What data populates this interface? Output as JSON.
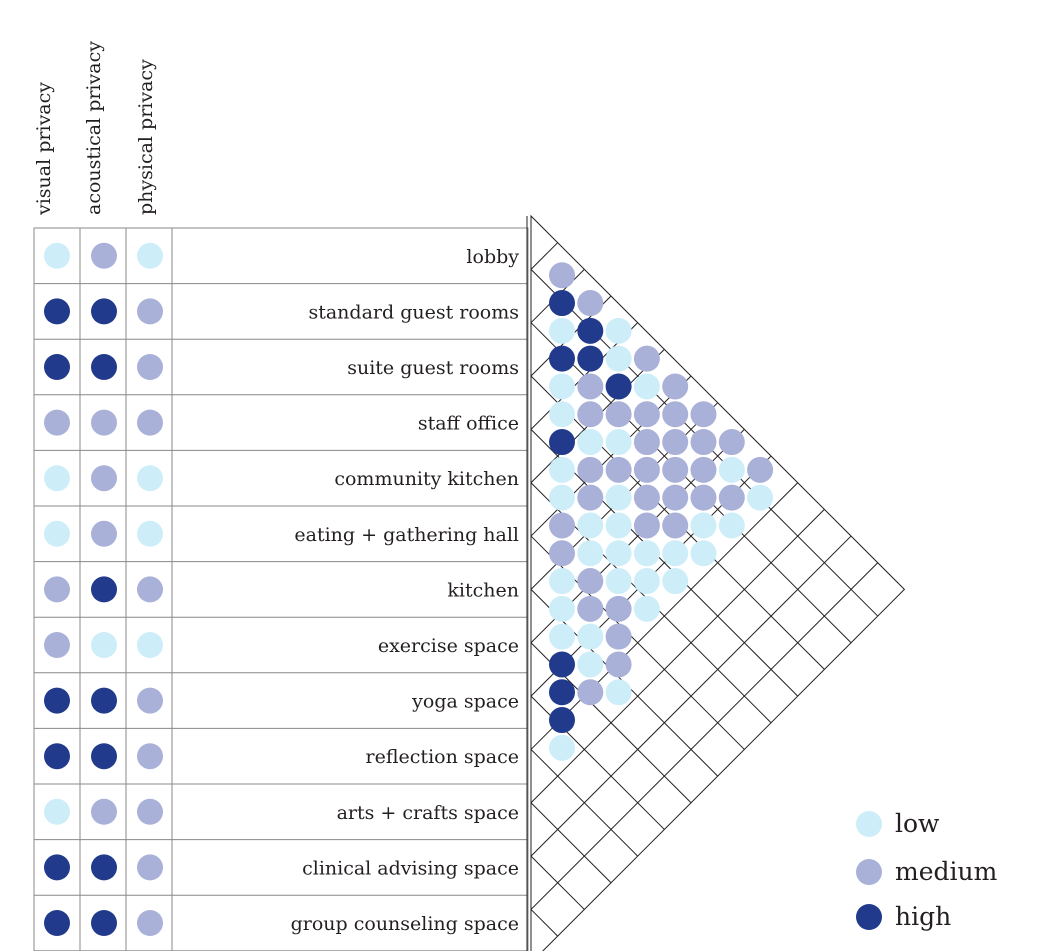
{
  "colors": {
    "low": "#cdeef9",
    "medium": "#a9b1d8",
    "high": "#213a8b",
    "grid": "#888888",
    "line": "#231f20"
  },
  "columns": [
    {
      "key": "visual",
      "label": "visual privacy"
    },
    {
      "key": "acoustical",
      "label": "acoustical privacy"
    },
    {
      "key": "physical",
      "label": "physical privacy"
    }
  ],
  "rows": [
    {
      "label": "lobby",
      "levels": [
        "low",
        "medium",
        "low"
      ]
    },
    {
      "label": "standard guest rooms",
      "levels": [
        "high",
        "high",
        "medium"
      ]
    },
    {
      "label": "suite guest rooms",
      "levels": [
        "high",
        "high",
        "medium"
      ]
    },
    {
      "label": "staff office",
      "levels": [
        "medium",
        "medium",
        "medium"
      ]
    },
    {
      "label": "community kitchen",
      "levels": [
        "low",
        "medium",
        "low"
      ]
    },
    {
      "label": "eating + gathering hall",
      "levels": [
        "low",
        "medium",
        "low"
      ]
    },
    {
      "label": "kitchen",
      "levels": [
        "medium",
        "high",
        "medium"
      ]
    },
    {
      "label": "exercise space",
      "levels": [
        "medium",
        "low",
        "low"
      ]
    },
    {
      "label": "yoga space",
      "levels": [
        "high",
        "high",
        "medium"
      ]
    },
    {
      "label": "reflection space",
      "levels": [
        "high",
        "high",
        "medium"
      ]
    },
    {
      "label": "arts + crafts space",
      "levels": [
        "low",
        "medium",
        "medium"
      ]
    },
    {
      "label": "clinical advising space",
      "levels": [
        "high",
        "high",
        "medium"
      ]
    },
    {
      "label": "group counseling space",
      "levels": [
        "high",
        "high",
        "medium"
      ]
    }
  ],
  "adjacency": [
    [
      "medium"
    ],
    [
      "high",
      "medium"
    ],
    [
      "low",
      "high",
      "low"
    ],
    [
      "high",
      "high",
      "low",
      "medium"
    ],
    [
      "low",
      "medium",
      "high",
      "low",
      "medium"
    ],
    [
      "low",
      "medium",
      "medium",
      "medium",
      "medium",
      "medium"
    ],
    [
      "high",
      "low",
      "low",
      "medium",
      "medium",
      "medium",
      "medium"
    ],
    [
      "low",
      "medium",
      "medium",
      "medium",
      "medium",
      "medium",
      "low",
      "medium"
    ],
    [
      "low",
      "medium",
      "low",
      "medium",
      "medium",
      "medium",
      "medium",
      "low"
    ],
    [
      "medium",
      "low",
      "low",
      "medium",
      "medium",
      "low",
      "low"
    ],
    [
      "medium",
      "low",
      "low",
      "low",
      "low",
      "low"
    ],
    [
      "low",
      "medium",
      "low",
      "low",
      "low"
    ],
    [
      "low",
      "medium",
      "medium",
      "low"
    ],
    [
      "low",
      "low",
      "medium"
    ],
    [
      "high",
      "low",
      "medium"
    ],
    [
      "high",
      "medium",
      "low"
    ],
    [
      "high"
    ],
    [
      "low"
    ]
  ],
  "legend": [
    {
      "level": "low",
      "label": "low"
    },
    {
      "level": "medium",
      "label": "medium"
    },
    {
      "level": "high",
      "label": "high"
    }
  ]
}
